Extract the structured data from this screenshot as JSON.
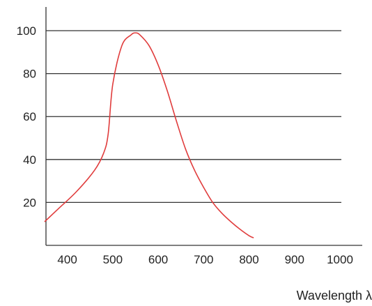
{
  "chart_data": {
    "type": "line",
    "title": "",
    "xlabel": "Wavelength λ",
    "ylabel": "",
    "x_ticks": [
      400,
      500,
      600,
      700,
      800,
      900,
      1000
    ],
    "y_ticks": [
      20,
      40,
      60,
      80,
      100
    ],
    "xlim": [
      350,
      1000
    ],
    "ylim": [
      0,
      113
    ],
    "grid": "horizontal",
    "series": [
      {
        "color": "#e03c3c",
        "x": [
          350,
          380,
          420,
          460,
          480,
          490,
          500,
          520,
          540,
          550,
          560,
          580,
          600,
          620,
          640,
          660,
          680,
          700,
          720,
          740,
          760,
          780,
          800,
          810
        ],
        "y": [
          11,
          17,
          25,
          35,
          43,
          52,
          75,
          93,
          98,
          99,
          98,
          93,
          84,
          72,
          58,
          45,
          35,
          27,
          20,
          15,
          11,
          7.5,
          4.5,
          3.5
        ]
      }
    ]
  }
}
